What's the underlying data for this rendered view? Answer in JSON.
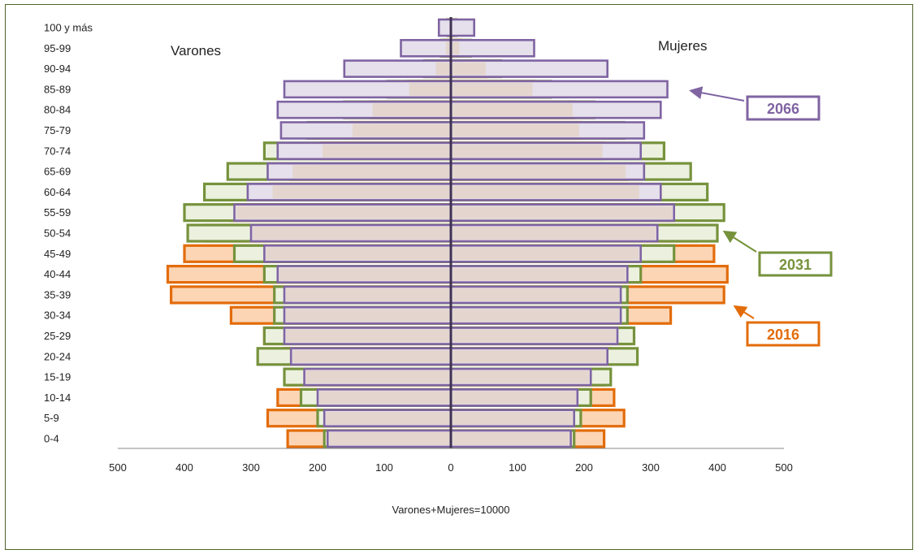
{
  "chart_data": {
    "type": "bar",
    "subtype": "population-pyramid",
    "left_label": "Varones",
    "right_label": "Mujeres",
    "xlabel": "Varones+Mujeres=10000",
    "xlim": [
      -500,
      500
    ],
    "x_ticks": [
      "500",
      "400",
      "300",
      "200",
      "100",
      "0",
      "100",
      "200",
      "300",
      "400",
      "500"
    ],
    "categories": [
      "0-4",
      "5-9",
      "10-14",
      "15-19",
      "20-24",
      "25-29",
      "30-34",
      "35-39",
      "40-44",
      "45-49",
      "50-54",
      "55-59",
      "60-64",
      "65-69",
      "70-74",
      "75-79",
      "80-84",
      "85-89",
      "90-94",
      "95-99",
      "100 y más"
    ],
    "series": [
      {
        "name": "2016",
        "color": "#e36c0a",
        "fill": "#fcd5b5",
        "male": [
          245,
          275,
          260,
          245,
          250,
          280,
          330,
          420,
          425,
          400,
          370,
          330,
          270,
          240,
          195,
          150,
          120,
          65,
          25,
          10,
          3
        ],
        "female": [
          230,
          260,
          245,
          230,
          240,
          270,
          330,
          410,
          415,
          395,
          370,
          335,
          285,
          265,
          230,
          195,
          185,
          125,
          55,
          15,
          4
        ]
      },
      {
        "name": "2031",
        "color": "#76923c",
        "fill": "#ebf1de",
        "male": [
          190,
          200,
          225,
          250,
          290,
          280,
          265,
          265,
          280,
          325,
          395,
          400,
          370,
          335,
          280,
          215,
          160,
          95,
          40,
          15,
          5
        ],
        "female": [
          185,
          195,
          210,
          240,
          280,
          275,
          265,
          265,
          285,
          335,
          400,
          410,
          385,
          360,
          320,
          260,
          215,
          150,
          75,
          30,
          8
        ]
      },
      {
        "name": "2066",
        "color": "#7f64a2",
        "fill": "#e5e0ec",
        "male": [
          185,
          190,
          200,
          220,
          240,
          250,
          250,
          250,
          260,
          280,
          300,
          325,
          305,
          275,
          260,
          255,
          260,
          250,
          160,
          75,
          18
        ],
        "female": [
          180,
          185,
          190,
          210,
          235,
          250,
          255,
          255,
          265,
          285,
          310,
          335,
          315,
          290,
          285,
          290,
          315,
          325,
          235,
          125,
          35
        ]
      }
    ],
    "legend": [
      {
        "label": "2066",
        "color": "#7f64a2"
      },
      {
        "label": "2031",
        "color": "#76923c"
      },
      {
        "label": "2016",
        "color": "#e36c0a"
      }
    ],
    "center_line_color": "#3f3151",
    "grid": false
  }
}
